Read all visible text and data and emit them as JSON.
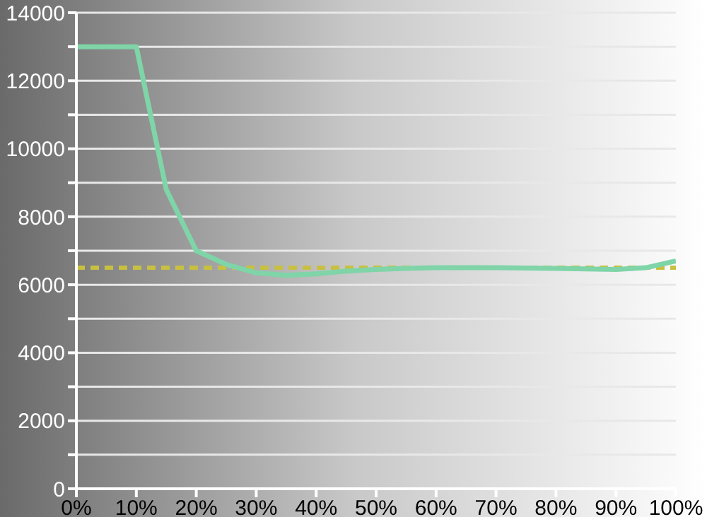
{
  "chart_data": {
    "type": "line",
    "x": [
      0,
      10,
      15,
      20,
      25,
      30,
      35,
      40,
      45,
      50,
      55,
      60,
      70,
      80,
      90,
      95,
      100
    ],
    "series": [
      {
        "color": "#7fd4a8",
        "values": [
          13000,
          13000,
          8800,
          7000,
          6600,
          6350,
          6280,
          6320,
          6400,
          6450,
          6480,
          6500,
          6500,
          6480,
          6450,
          6500,
          6700
        ]
      }
    ],
    "xlim": [
      0,
      100
    ],
    "xticks": [
      {
        "value": 0,
        "label": "0%"
      },
      {
        "value": 10,
        "label": "10%"
      },
      {
        "value": 20,
        "label": "20%"
      },
      {
        "value": 30,
        "label": "30%"
      },
      {
        "value": 40,
        "label": "40%"
      },
      {
        "value": 50,
        "label": "50%"
      },
      {
        "value": 60,
        "label": "60%"
      },
      {
        "value": 70,
        "label": "70%"
      },
      {
        "value": 80,
        "label": "80%"
      },
      {
        "value": 90,
        "label": "90%"
      },
      {
        "value": 100,
        "label": "100%"
      }
    ],
    "ylim": [
      0,
      14000
    ],
    "yticks": [
      0,
      {
        "value": 1000,
        "label": null
      },
      2000,
      {
        "value": 3000,
        "label": null
      },
      4000,
      {
        "value": 5000,
        "label": null
      },
      6000,
      {
        "value": 7000,
        "label": null
      },
      8000,
      {
        "value": 9000,
        "label": null
      },
      10000,
      {
        "value": 11000,
        "label": null
      },
      12000,
      {
        "value": 13000,
        "label": null
      },
      14000
    ],
    "ref_lines": [
      {
        "axis": "y",
        "value": 6500,
        "color": "#c8c040",
        "line_style": "dashed"
      }
    ],
    "grid": "y",
    "marker": "none",
    "line_style": "solid"
  }
}
